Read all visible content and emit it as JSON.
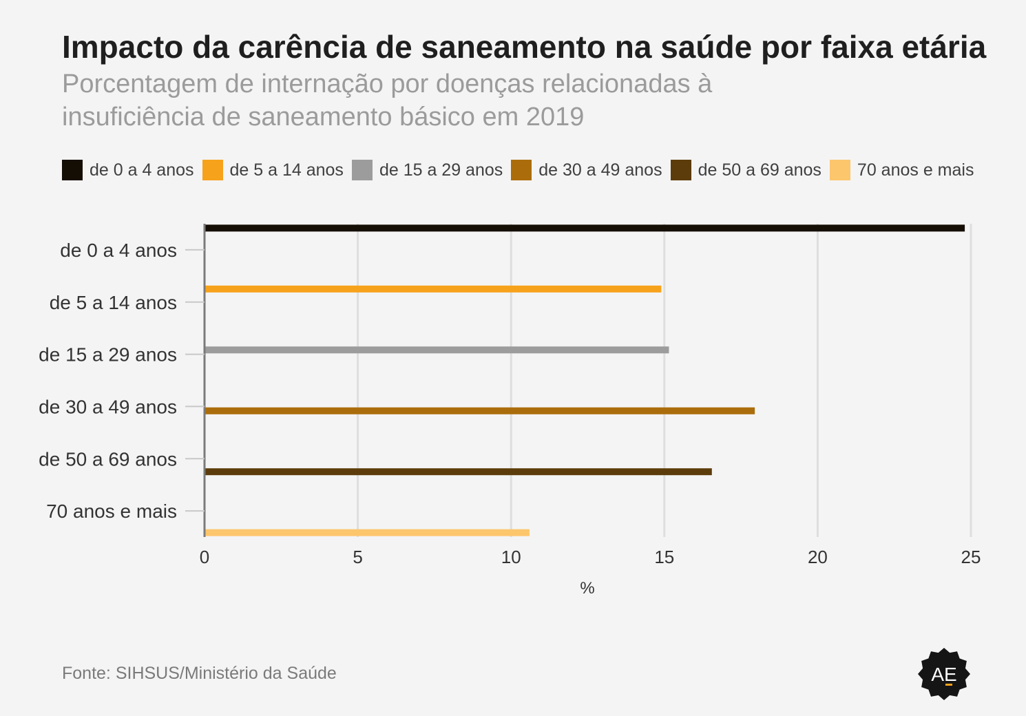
{
  "header": {
    "title": "Impacto da carência de saneamento na saúde por faixa etária",
    "subtitle": "Porcentagem de internação por doenças relacionadas à insuficiência de saneamento básico em 2019"
  },
  "legend": [
    {
      "label": "de 0 a 4 anos",
      "color": "#150e05"
    },
    {
      "label": "de 5 a 14 anos",
      "color": "#f7a21b"
    },
    {
      "label": "de 15 a 29 anos",
      "color": "#9c9c9c"
    },
    {
      "label": "de 30 a 49 anos",
      "color": "#ab6d0b"
    },
    {
      "label": "de 50 a 69 anos",
      "color": "#5c3c0a"
    },
    {
      "label": "70 anos e mais",
      "color": "#fcc66c"
    }
  ],
  "chart_data": {
    "type": "bar",
    "orientation": "horizontal",
    "categories": [
      "de 0 a 4 anos",
      "de 5 a 14 anos",
      "de 15 a 29 anos",
      "de 30 a 49 anos",
      "de 50 a 69 anos",
      "70 anos e mais"
    ],
    "series": [
      {
        "name": "de 0 a 4 anos",
        "values": [
          24.8,
          null,
          null,
          null,
          null,
          null
        ]
      },
      {
        "name": "de 5 a 14 anos",
        "values": [
          null,
          14.9,
          null,
          null,
          null,
          null
        ]
      },
      {
        "name": "de 15 a 29 anos",
        "values": [
          null,
          null,
          15.15,
          null,
          null,
          null
        ]
      },
      {
        "name": "de 30 a 49 anos",
        "values": [
          null,
          null,
          null,
          17.95,
          null,
          null
        ]
      },
      {
        "name": "de 50 a 69 anos",
        "values": [
          null,
          null,
          null,
          null,
          16.55,
          null
        ]
      },
      {
        "name": "70 anos e mais",
        "values": [
          null,
          null,
          null,
          null,
          null,
          10.6
        ]
      }
    ],
    "colors": [
      "#150e05",
      "#f7a21b",
      "#9c9c9c",
      "#ab6d0b",
      "#5c3c0a",
      "#fcc66c"
    ],
    "xticks": [
      "0",
      "5",
      "10",
      "15",
      "20",
      "25"
    ],
    "xlim": [
      0,
      25
    ],
    "xlabel": "%",
    "grid": true,
    "legend_position": "top"
  },
  "footer": {
    "source": "Fonte: SIHSUS/Ministério da Saúde",
    "logo_text": "AE"
  }
}
